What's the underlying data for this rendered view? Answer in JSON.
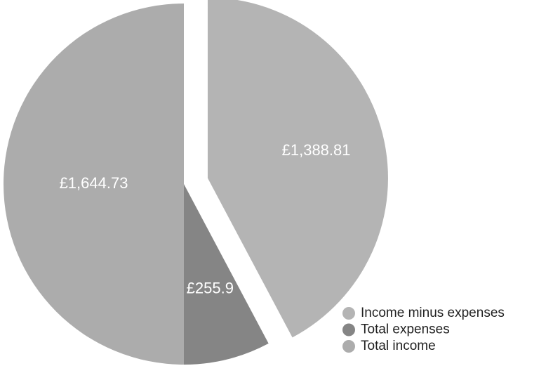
{
  "chart_data": {
    "type": "pie",
    "categories": [
      "Income minus expenses",
      "Total expenses",
      "Total income"
    ],
    "values": [
      1388.81,
      255.92,
      1644.73
    ],
    "value_labels": [
      "£1,388.81",
      "£255.9",
      "£1,644.73"
    ],
    "colors": [
      "#b4b4b4",
      "#858585",
      "#acacac"
    ],
    "legend": "lower right"
  }
}
